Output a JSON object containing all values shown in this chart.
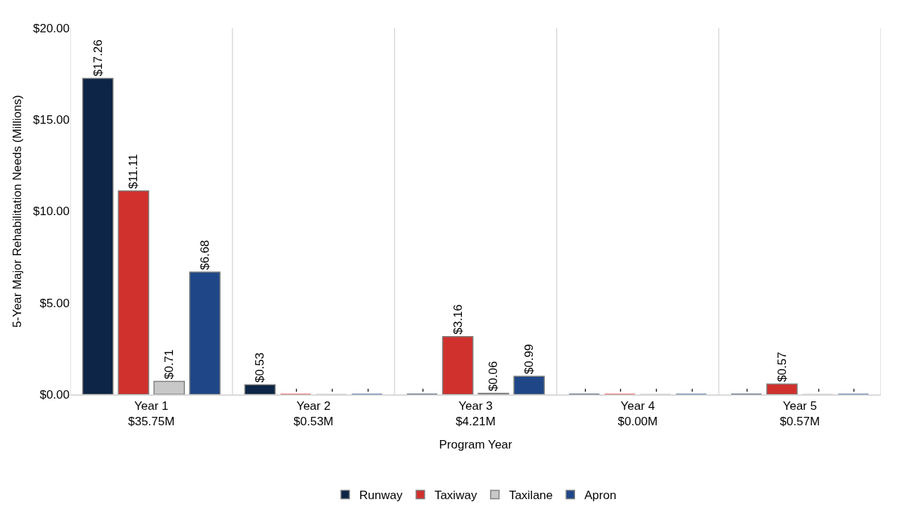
{
  "chart_data": {
    "type": "bar",
    "xlabel": "Program Year",
    "ylabel": "5-Year Major Rehabilitation Needs (Millions)",
    "categories": [
      "Year 1\n$35.75M",
      "Year 2\n$0.53M",
      "Year 3\n$4.21M",
      "Year 4\n$0.00M",
      "Year 5\n$0.57M"
    ],
    "series": [
      {
        "name": "Runway",
        "color": "#0d2546",
        "values": [
          17.26,
          0.53,
          0,
          0,
          0
        ],
        "value_labels": [
          "$17.26",
          "$0.53",
          "-",
          "-",
          "-"
        ]
      },
      {
        "name": "Taxiway",
        "color": "#d0312d",
        "values": [
          11.11,
          0,
          3.16,
          0,
          0.57
        ],
        "value_labels": [
          "$11.11",
          "-",
          "$3.16",
          "-",
          "$0.57"
        ]
      },
      {
        "name": "Taxilane",
        "color": "#c8c8c8",
        "values": [
          0.71,
          0,
          0.06,
          0,
          0
        ],
        "value_labels": [
          "$0.71",
          "-",
          "$0.06",
          "-",
          "-"
        ]
      },
      {
        "name": "Apron",
        "color": "#1f4788",
        "values": [
          6.68,
          0,
          0.99,
          0,
          0
        ],
        "value_labels": [
          "$6.68",
          "-",
          "$0.99",
          "-",
          "-"
        ]
      }
    ],
    "ylim": [
      0,
      20
    ],
    "yticks": [
      {
        "value": 0,
        "label": "$0.00"
      },
      {
        "value": 5,
        "label": "$5.00"
      },
      {
        "value": 10,
        "label": "$10.00"
      },
      {
        "value": 15,
        "label": "$15.00"
      },
      {
        "value": 20,
        "label": "$20.00"
      }
    ],
    "grid": "x",
    "legend": "bottom"
  }
}
